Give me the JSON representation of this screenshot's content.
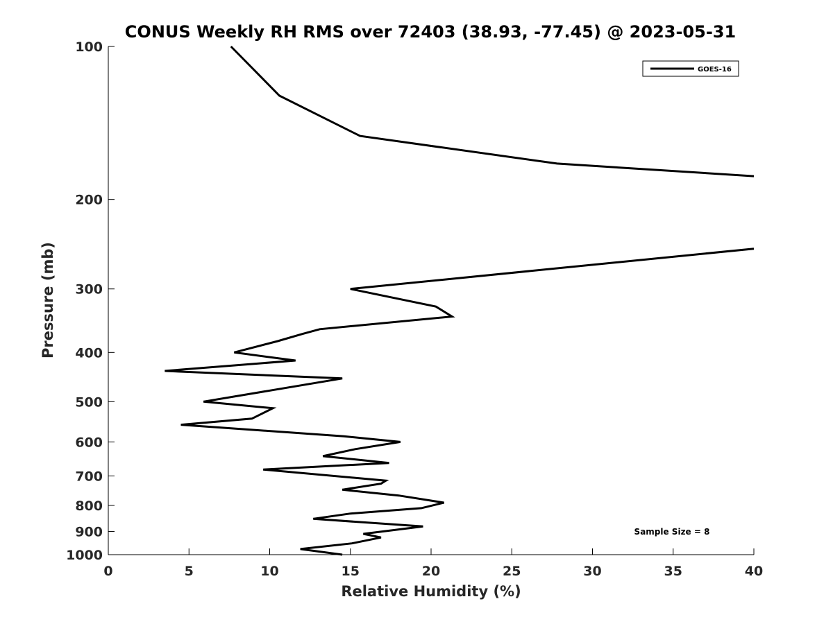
{
  "chart_data": {
    "type": "line",
    "title": "CONUS Weekly RH RMS over 72403 (38.93, -77.45) @ 2023-05-31",
    "xlabel": "Relative Humidity (%)",
    "ylabel": "Pressure (mb)",
    "xlim": [
      0,
      40
    ],
    "ylim": [
      100,
      1000
    ],
    "yscale": "log",
    "y_reversed": true,
    "grid": false,
    "legend_position": "top-right",
    "x_ticks": [
      0,
      5,
      10,
      15,
      20,
      25,
      30,
      35,
      40
    ],
    "x_tick_labels": [
      "0",
      "5",
      "10",
      "15",
      "20",
      "25",
      "30",
      "35",
      "40"
    ],
    "y_ticks": [
      100,
      200,
      300,
      400,
      500,
      600,
      700,
      800,
      900,
      1000
    ],
    "y_tick_labels": [
      "100",
      "200",
      "300",
      "400",
      "500",
      "600",
      "700",
      "800",
      "900",
      "1000"
    ],
    "series": [
      {
        "name": "GOES-16",
        "color": "#000000",
        "points": [
          [
            14.5,
            1000
          ],
          [
            11.9,
            975
          ],
          [
            15.1,
            950
          ],
          [
            16.9,
            925
          ],
          [
            15.8,
            910
          ],
          [
            19.5,
            880
          ],
          [
            12.7,
            850
          ],
          [
            15.0,
            830
          ],
          [
            19.4,
            810
          ],
          [
            20.8,
            790
          ],
          [
            18.0,
            765
          ],
          [
            14.5,
            745
          ],
          [
            16.9,
            725
          ],
          [
            17.2,
            715
          ],
          [
            9.6,
            680
          ],
          [
            17.4,
            660
          ],
          [
            13.3,
            640
          ],
          [
            15.3,
            620
          ],
          [
            18.1,
            600
          ],
          [
            14.6,
            585
          ],
          [
            4.5,
            555
          ],
          [
            8.9,
            540
          ],
          [
            10.2,
            515
          ],
          [
            5.9,
            500
          ],
          [
            14.5,
            450
          ],
          [
            3.5,
            435
          ],
          [
            11.6,
            415
          ],
          [
            7.8,
            400
          ],
          [
            10.5,
            380
          ],
          [
            12.0,
            368
          ],
          [
            13.1,
            360
          ],
          [
            21.3,
            340
          ],
          [
            20.3,
            325
          ],
          [
            15.0,
            300
          ],
          [
            40.0,
            250
          ]
        ]
      },
      {
        "name": "GOES-16",
        "color": "#000000",
        "points": [
          [
            40.0,
            180
          ],
          [
            27.8,
            170
          ],
          [
            15.6,
            150
          ],
          [
            10.6,
            125
          ],
          [
            7.6,
            100
          ]
        ]
      }
    ],
    "legend": [
      "GOES-16"
    ],
    "annotation": "Sample Size = 8"
  }
}
